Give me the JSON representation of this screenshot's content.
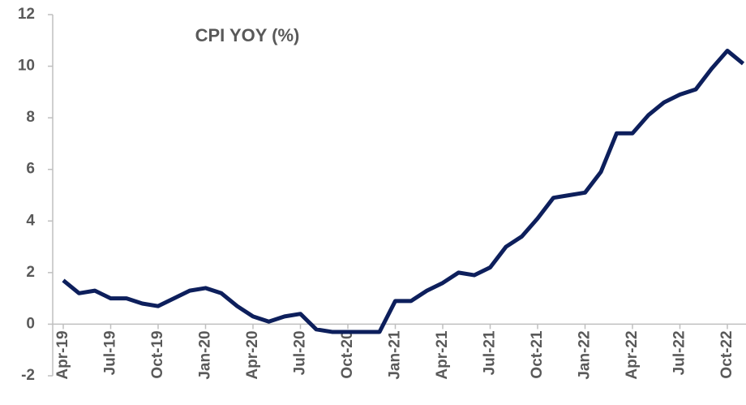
{
  "chart_data": {
    "type": "line",
    "title": "CPI YOY (%)",
    "categories": [
      "Apr-19",
      null,
      null,
      "Jul-19",
      null,
      null,
      "Oct-19",
      null,
      null,
      "Jan-20",
      null,
      null,
      "Apr-20",
      null,
      null,
      "Jul-20",
      null,
      null,
      "Oct-20",
      null,
      null,
      "Jan-21",
      null,
      null,
      "Apr-21",
      null,
      null,
      "Jul-21",
      null,
      null,
      "Oct-21",
      null,
      null,
      "Jan-22",
      null,
      null,
      "Apr-22",
      null,
      null,
      "Jul-22",
      null,
      null,
      "Oct-22",
      null
    ],
    "series": [
      {
        "name": "CPI YOY",
        "color": "#0d1f5c",
        "values": [
          1.7,
          1.2,
          1.3,
          1.0,
          1.0,
          0.8,
          0.7,
          1.0,
          1.3,
          1.4,
          1.2,
          0.7,
          0.3,
          0.1,
          0.3,
          0.4,
          -0.2,
          -0.3,
          -0.3,
          -0.3,
          -0.3,
          0.9,
          0.9,
          1.3,
          1.6,
          2.0,
          1.9,
          2.2,
          3.0,
          3.4,
          4.1,
          4.9,
          5.0,
          5.1,
          5.9,
          7.4,
          7.4,
          8.1,
          8.6,
          8.9,
          9.1,
          9.9,
          10.6,
          10.1
        ]
      }
    ],
    "ylim": [
      -2,
      12
    ],
    "yticks": [
      -2,
      0,
      2,
      4,
      6,
      8,
      10,
      12
    ],
    "grid": false
  }
}
